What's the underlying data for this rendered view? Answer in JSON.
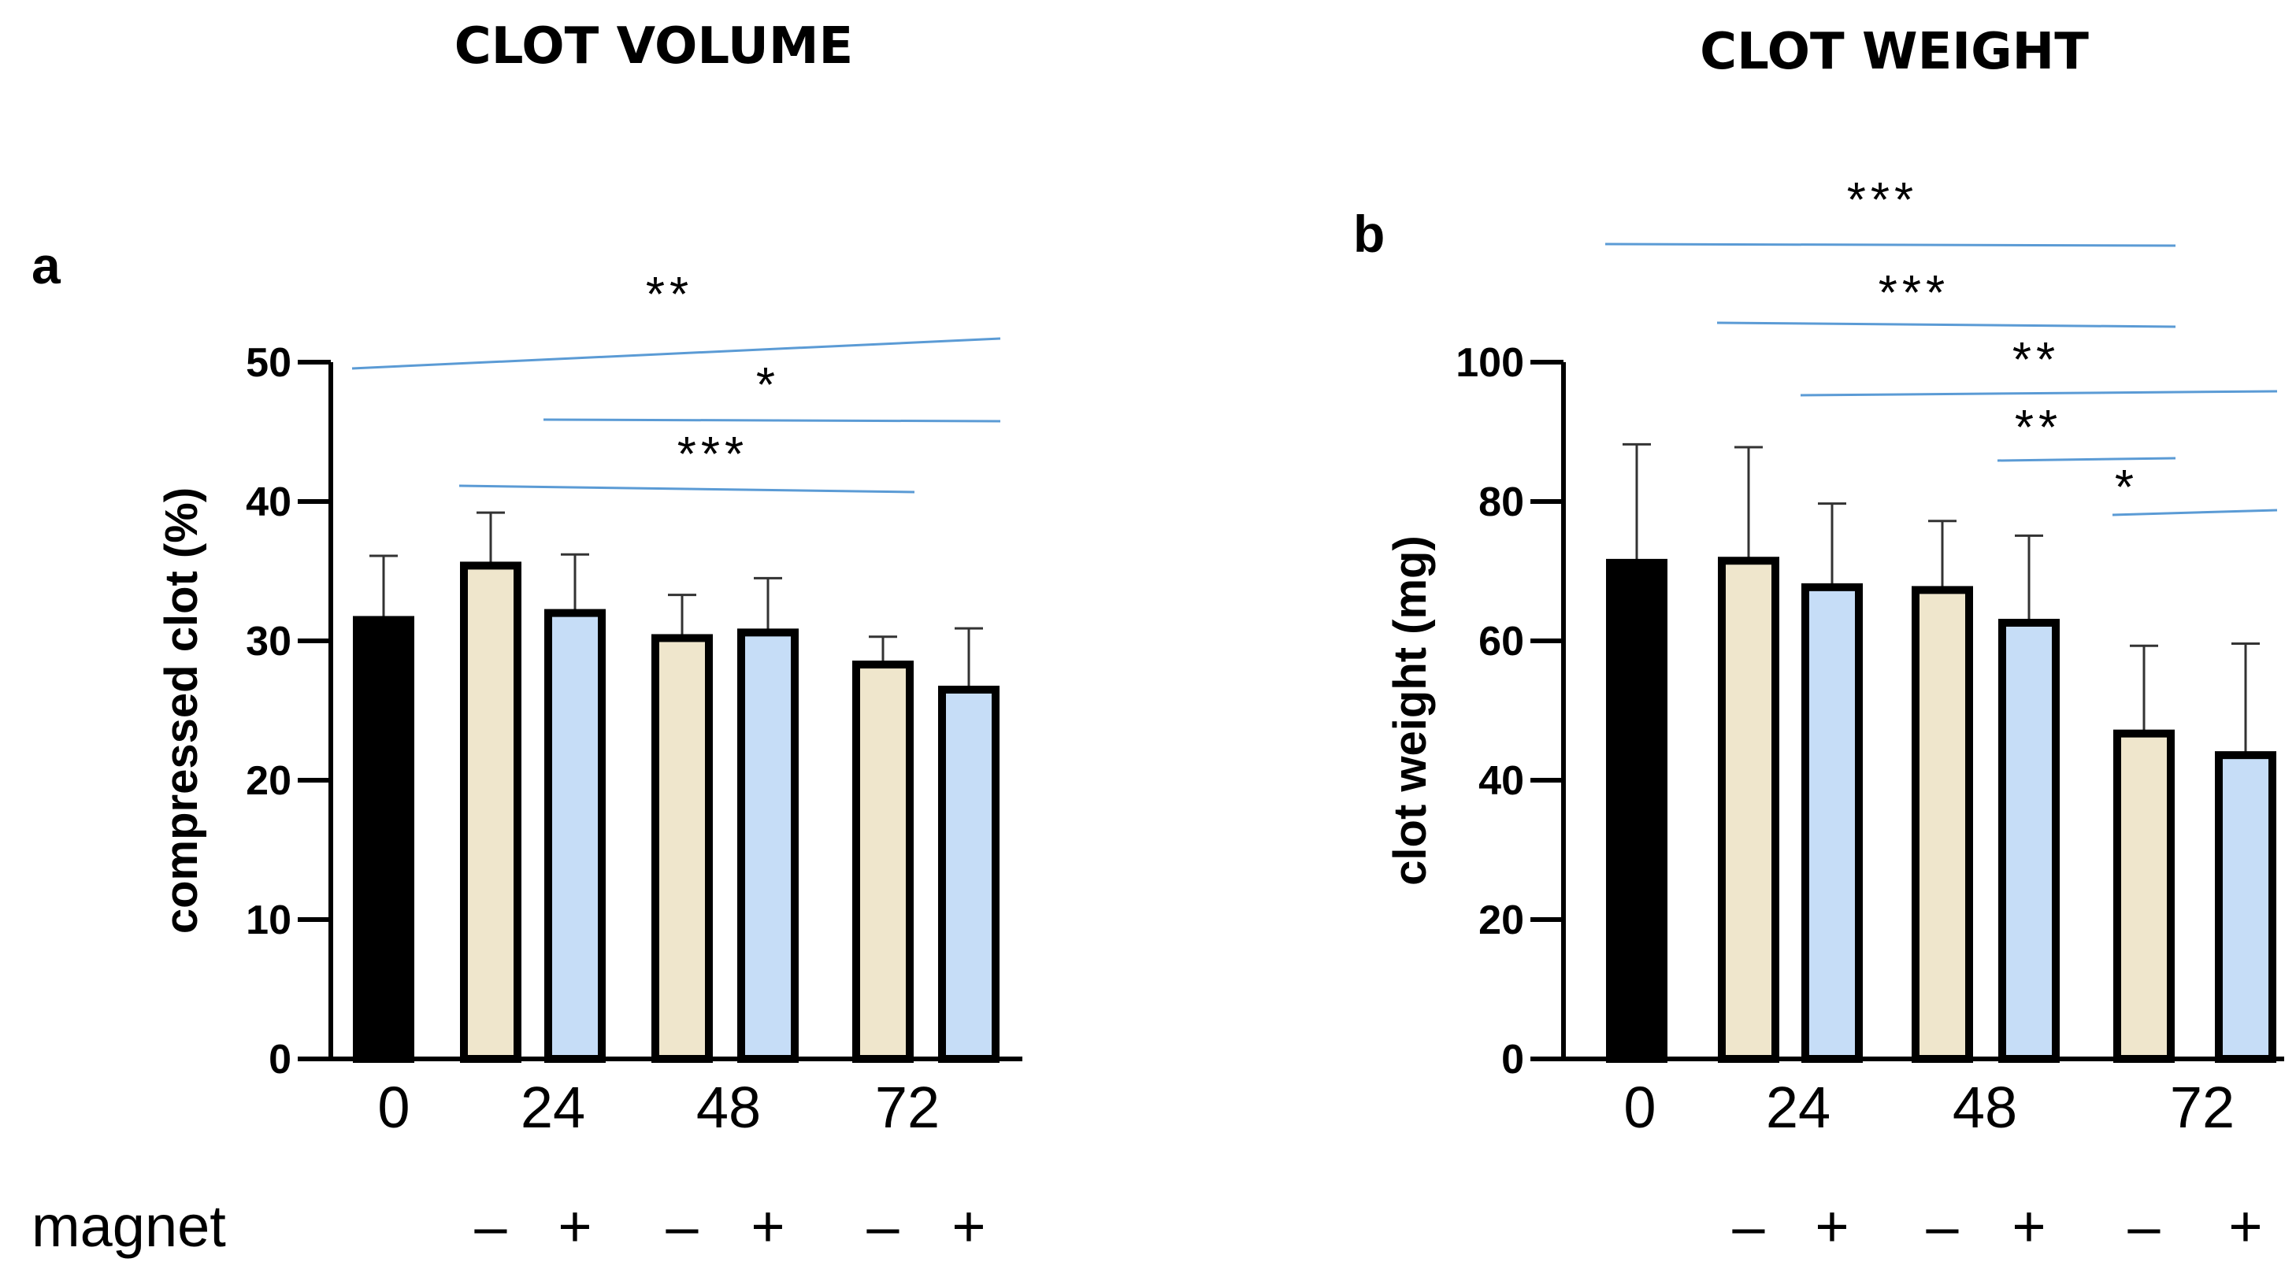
{
  "titles": {
    "left": "CLOT VOLUME",
    "right": "CLOT WEIGHT"
  },
  "magnet_row_label": "magnet",
  "colors": {
    "control": "#000000",
    "no_magnet": "#EFE6CC",
    "magnet": "#C6DDF7",
    "edge": "#000000",
    "sig_line": "#5B9BD5"
  },
  "chart_data": [
    {
      "type": "bar",
      "panel": "a",
      "title": "CLOT VOLUME",
      "ylabel": "compressed clot (%)",
      "xlabel": "",
      "ylim": [
        0,
        50
      ],
      "yticks": [
        "0",
        "10",
        "20",
        "30",
        "40",
        "50"
      ],
      "groups": [
        "0",
        "24",
        "48",
        "72"
      ],
      "bars": [
        {
          "group": "0",
          "magnet": "",
          "kind": "control",
          "value": 31.5,
          "error": 4.6
        },
        {
          "group": "24",
          "magnet": "–",
          "kind": "no_magnet",
          "value": 35.4,
          "error": 3.8
        },
        {
          "group": "24",
          "magnet": "+",
          "kind": "magnet",
          "value": 32.0,
          "error": 4.2
        },
        {
          "group": "48",
          "magnet": "–",
          "kind": "no_magnet",
          "value": 30.2,
          "error": 3.1
        },
        {
          "group": "48",
          "magnet": "+",
          "kind": "magnet",
          "value": 30.6,
          "error": 3.9
        },
        {
          "group": "72",
          "magnet": "–",
          "kind": "no_magnet",
          "value": 28.3,
          "error": 2.0
        },
        {
          "group": "72",
          "magnet": "+",
          "kind": "magnet",
          "value": 26.5,
          "error": 4.4
        }
      ],
      "significance": [
        {
          "from": 0,
          "to": 6,
          "label": "**"
        },
        {
          "from": 2,
          "to": 6,
          "label": "*"
        },
        {
          "from": 1,
          "to": 5,
          "label": "***"
        }
      ]
    },
    {
      "type": "bar",
      "panel": "b",
      "title": "CLOT WEIGHT",
      "ylabel": "clot weight (mg)",
      "xlabel": "",
      "ylim": [
        0,
        100
      ],
      "yticks": [
        "0",
        "20",
        "40",
        "60",
        "80",
        "100"
      ],
      "groups": [
        "0",
        "24",
        "48",
        "72"
      ],
      "bars": [
        {
          "group": "0",
          "magnet": "",
          "kind": "control",
          "value": 71.2,
          "error": 17.0
        },
        {
          "group": "24",
          "magnet": "–",
          "kind": "no_magnet",
          "value": 71.5,
          "error": 16.3
        },
        {
          "group": "24",
          "magnet": "+",
          "kind": "magnet",
          "value": 67.7,
          "error": 12.0
        },
        {
          "group": "48",
          "magnet": "–",
          "kind": "no_magnet",
          "value": 67.3,
          "error": 9.9
        },
        {
          "group": "48",
          "magnet": "+",
          "kind": "magnet",
          "value": 62.6,
          "error": 12.5
        },
        {
          "group": "72",
          "magnet": "–",
          "kind": "no_magnet",
          "value": 46.7,
          "error": 12.6
        },
        {
          "group": "72",
          "magnet": "+",
          "kind": "magnet",
          "value": 43.6,
          "error": 16.0
        }
      ],
      "significance": [
        {
          "from": 0,
          "to": 5,
          "label": "***"
        },
        {
          "from": 1,
          "to": 5,
          "label": "***"
        },
        {
          "from": 2,
          "to": 6,
          "label": "**"
        },
        {
          "from": 4,
          "to": 5,
          "label": "**"
        },
        {
          "from": 5,
          "to": 6,
          "label": "*"
        }
      ]
    }
  ]
}
